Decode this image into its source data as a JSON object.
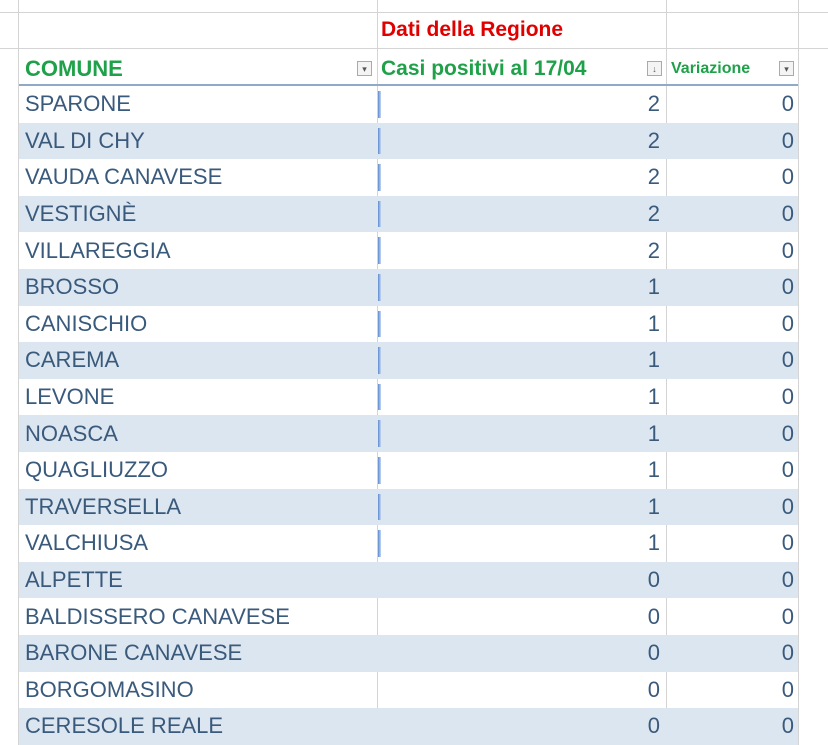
{
  "section_title": "Dati della Regione",
  "headers": {
    "comune": "COMUNE",
    "casi": "Casi positivi al 17/04",
    "variazione": "Variazione"
  },
  "icons": {
    "filter": "filter-dropdown-icon",
    "sort": "sort-descending-icon"
  },
  "colors": {
    "title": "#e00000",
    "header": "#1fa14a",
    "text": "#3a5a7c",
    "band": "#dce6f1",
    "databar": "#5b8bd0"
  },
  "rows": [
    {
      "comune": "SPARONE",
      "casi": "2",
      "variazione": "0"
    },
    {
      "comune": "VAL DI CHY",
      "casi": "2",
      "variazione": "0"
    },
    {
      "comune": "VAUDA CANAVESE",
      "casi": "2",
      "variazione": "0"
    },
    {
      "comune": "VESTIGNÈ",
      "casi": "2",
      "variazione": "0"
    },
    {
      "comune": "VILLAREGGIA",
      "casi": "2",
      "variazione": "0"
    },
    {
      "comune": "BROSSO",
      "casi": "1",
      "variazione": "0"
    },
    {
      "comune": "CANISCHIO",
      "casi": "1",
      "variazione": "0"
    },
    {
      "comune": "CAREMA",
      "casi": "1",
      "variazione": "0"
    },
    {
      "comune": "LEVONE",
      "casi": "1",
      "variazione": "0"
    },
    {
      "comune": "NOASCA",
      "casi": "1",
      "variazione": "0"
    },
    {
      "comune": "QUAGLIUZZO",
      "casi": "1",
      "variazione": "0"
    },
    {
      "comune": "TRAVERSELLA",
      "casi": "1",
      "variazione": "0"
    },
    {
      "comune": "VALCHIUSA",
      "casi": "1",
      "variazione": "0"
    },
    {
      "comune": "ALPETTE",
      "casi": "0",
      "variazione": "0"
    },
    {
      "comune": "BALDISSERO CANAVESE",
      "casi": "0",
      "variazione": "0"
    },
    {
      "comune": "BARONE CANAVESE",
      "casi": "0",
      "variazione": "0"
    },
    {
      "comune": "BORGOMASINO",
      "casi": "0",
      "variazione": "0"
    },
    {
      "comune": "CERESOLE REALE",
      "casi": "0",
      "variazione": "0"
    }
  ]
}
